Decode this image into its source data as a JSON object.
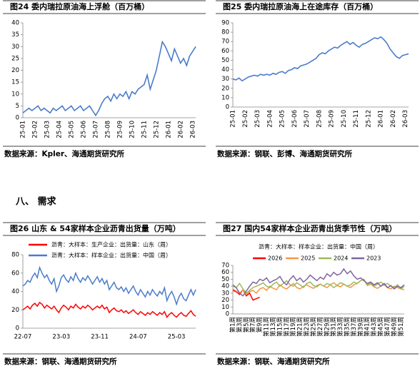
{
  "section_heading": "八、 需求",
  "chart_data": [
    {
      "type": "line",
      "title": "图24 委内瑞拉原油海上浮舱（百万桶）",
      "source": "数据来源：Kpler、海通期货研究所",
      "categories": [
        "25-01",
        null,
        null,
        null,
        "25-02",
        null,
        null,
        null,
        "25-03",
        null,
        null,
        null,
        "25-04",
        null,
        null,
        null,
        "25-05",
        null,
        null,
        null,
        "25-06",
        null,
        null,
        null,
        "25-07",
        null,
        null,
        null,
        "25-08",
        null,
        null,
        null,
        "25-09",
        null,
        null,
        null,
        "25-10",
        null,
        null,
        null,
        "25-11",
        null,
        null,
        null,
        "25-12",
        null,
        null,
        null,
        "26-01",
        null,
        null,
        null,
        "26-02",
        null,
        null,
        null,
        "26-03",
        null
      ],
      "series": [
        {
          "name": null,
          "color": "#4a7cc9",
          "values": [
            2,
            3,
            4,
            3,
            4,
            5,
            3,
            4,
            3,
            2,
            4,
            3,
            4,
            5,
            3,
            4,
            5,
            3,
            4,
            5,
            3,
            4,
            5,
            3,
            1,
            3,
            6,
            8,
            9,
            7,
            10,
            8,
            10,
            9,
            11,
            8,
            11,
            10,
            12,
            13,
            14,
            18,
            12,
            16,
            20,
            26,
            32,
            30,
            27,
            24,
            29,
            26,
            23,
            25,
            22,
            26,
            28,
            30
          ]
        }
      ],
      "ylim": [
        0,
        40
      ],
      "yticks": [
        0,
        5,
        10,
        15,
        20,
        25,
        30,
        35,
        40
      ]
    },
    {
      "type": "line",
      "title": "图25 委内瑞拉原油海上在途库存（百万桶）",
      "source": "数据来源：钢联、彭博、海通期货研究所",
      "categories": [
        "25-01",
        null,
        null,
        null,
        "25-02",
        null,
        null,
        null,
        "25-03",
        null,
        null,
        null,
        "25-04",
        null,
        null,
        null,
        "25-05",
        null,
        null,
        null,
        "25-06",
        null,
        null,
        null,
        "25-07",
        null,
        null,
        null,
        "25-08",
        null,
        null,
        null,
        "25-09",
        null,
        null,
        null,
        "25-10",
        null,
        null,
        null,
        "25-11",
        null,
        null,
        null,
        "25-12",
        null,
        null,
        null,
        "26-01",
        null,
        null,
        null,
        "26-02",
        null,
        null,
        null,
        "26-03",
        null
      ],
      "series": [
        {
          "name": null,
          "color": "#4a7cc9",
          "values": [
            30,
            29,
            31,
            28,
            30,
            32,
            33,
            34,
            33,
            35,
            34,
            35,
            34,
            36,
            35,
            37,
            38,
            36,
            39,
            40,
            42,
            41,
            44,
            45,
            46,
            48,
            50,
            52,
            56,
            58,
            57,
            60,
            62,
            64,
            63,
            66,
            68,
            70,
            67,
            69,
            66,
            64,
            67,
            68,
            70,
            72,
            74,
            73,
            75,
            72,
            68,
            62,
            58,
            54,
            52,
            55,
            56,
            57
          ]
        }
      ],
      "ylim": [
        0,
        90
      ],
      "yticks": [
        0,
        10,
        20,
        30,
        40,
        50,
        60,
        70,
        80,
        90
      ]
    },
    {
      "type": "line",
      "title": "图26 山东 & 54家样本企业沥青出货量（万吨）",
      "source": "数据来源：钢联、海通期货研究所",
      "categories": [
        "22-07",
        null,
        null,
        null,
        null,
        null,
        null,
        null,
        null,
        null,
        null,
        null,
        null,
        null,
        null,
        null,
        "23-03",
        null,
        null,
        null,
        null,
        null,
        null,
        null,
        null,
        null,
        null,
        null,
        null,
        null,
        null,
        null,
        "23-11",
        null,
        null,
        null,
        null,
        null,
        null,
        null,
        null,
        null,
        null,
        null,
        null,
        null,
        null,
        null,
        "24-07",
        null,
        null,
        null,
        null,
        null,
        null,
        null,
        null,
        null,
        null,
        null,
        null,
        null,
        null,
        null,
        "25-03",
        null,
        null,
        null,
        null,
        null,
        null,
        null,
        null
      ],
      "series": [
        {
          "name": "沥青：大样本：生产企业：出货量：山东（周）",
          "color": "#ff0000",
          "values": [
            20,
            22,
            24,
            21,
            25,
            27,
            24,
            28,
            26,
            22,
            25,
            23,
            21,
            24,
            20,
            17,
            22,
            25,
            23,
            20,
            24,
            22,
            26,
            23,
            21,
            24,
            22,
            25,
            23,
            20,
            22,
            24,
            22,
            25,
            21,
            23,
            17,
            20,
            22,
            19,
            18,
            20,
            17,
            19,
            16,
            18,
            20,
            17,
            15,
            18,
            16,
            14,
            17,
            15,
            18,
            16,
            14,
            17,
            15,
            18,
            12,
            15,
            17,
            14,
            12,
            15,
            17,
            14,
            13,
            16,
            19,
            15,
            13
          ]
        },
        {
          "name": "沥青：大样本：样本企业：出货量：中国（周）",
          "color": "#4a7cc9",
          "values": [
            46,
            48,
            52,
            50,
            56,
            60,
            55,
            66,
            60,
            55,
            58,
            52,
            48,
            54,
            40,
            46,
            55,
            58,
            53,
            50,
            56,
            52,
            60,
            54,
            50,
            55,
            52,
            57,
            53,
            48,
            52,
            56,
            50,
            54,
            48,
            52,
            42,
            46,
            50,
            44,
            42,
            45,
            40,
            44,
            38,
            42,
            46,
            40,
            36,
            42,
            38,
            34,
            40,
            36,
            42,
            38,
            35,
            40,
            37,
            44,
            30,
            36,
            40,
            34,
            26,
            34,
            38,
            32,
            30,
            36,
            42,
            36,
            42
          ]
        }
      ],
      "ylim": [
        0,
        80
      ],
      "yticks": [
        0,
        20,
        40,
        60,
        80
      ]
    },
    {
      "type": "line",
      "title": "图27 国内54家样本企业沥青出货季节性（万吨）",
      "subtitle": "沥青：大样本：样本企业：出货量：中国（周）",
      "source": "数据来源：钢联、海通期货研究所",
      "categories": [
        "第1周",
        null,
        "第3周",
        null,
        "第5周",
        null,
        "第7周",
        null,
        "第9周",
        null,
        "第11周",
        null,
        "第13周",
        null,
        "第15周",
        null,
        "第17周",
        null,
        "第19周",
        null,
        "第21周",
        null,
        "第23周",
        null,
        "第25周",
        null,
        "第27周",
        null,
        "第29周",
        null,
        "第31周",
        null,
        "第33周",
        null,
        "第35周",
        null,
        "第37周",
        null,
        "第39周",
        null,
        "第41周",
        null,
        "第43周",
        null,
        "第45周",
        null,
        "第47周",
        null,
        "第49周",
        null,
        "第51周",
        null
      ],
      "series": [
        {
          "name": "2026",
          "color": "#ff0000",
          "values": [
            34,
            32,
            28,
            35,
            26,
            30,
            20,
            22,
            24,
            null,
            null,
            null,
            null,
            null,
            null,
            null,
            null,
            null,
            null,
            null,
            null,
            null,
            null,
            null,
            null,
            null,
            null,
            null,
            null,
            null,
            null,
            null,
            null,
            null,
            null,
            null,
            null,
            null,
            null,
            null,
            null,
            null,
            null,
            null,
            null,
            null,
            null,
            null,
            null,
            null,
            null,
            null
          ]
        },
        {
          "name": "2025",
          "color": "#f79646",
          "values": [
            36,
            33,
            30,
            35,
            28,
            32,
            34,
            30,
            36,
            38,
            34,
            40,
            37,
            35,
            42,
            38,
            36,
            40,
            44,
            38,
            36,
            40,
            42,
            39,
            37,
            41,
            43,
            40,
            38,
            42,
            45,
            41,
            39,
            43,
            40,
            38,
            42,
            44,
            48,
            50,
            41,
            43,
            39,
            37,
            40,
            42,
            38,
            36,
            40,
            38,
            36,
            35
          ]
        },
        {
          "name": "2024",
          "color": "#9bbb59",
          "values": [
            40,
            38,
            44,
            36,
            30,
            34,
            38,
            40,
            42,
            45,
            40,
            38,
            43,
            46,
            40,
            44,
            48,
            42,
            40,
            45,
            42,
            38,
            44,
            46,
            41,
            39,
            43,
            40,
            44,
            42,
            38,
            41,
            45,
            43,
            40,
            42,
            46,
            44,
            48,
            50,
            42,
            45,
            40,
            43,
            46,
            42,
            44,
            40,
            38,
            42,
            36,
            40
          ]
        },
        {
          "name": "2023",
          "color": "#8064a2",
          "values": [
            42,
            38,
            30,
            26,
            33,
            40,
            46,
            44,
            50,
            48,
            52,
            45,
            48,
            50,
            54,
            46,
            42,
            50,
            55,
            48,
            52,
            46,
            50,
            56,
            52,
            48,
            53,
            50,
            58,
            54,
            60,
            56,
            58,
            65,
            58,
            62,
            55,
            50,
            52,
            48,
            44,
            46,
            42,
            45,
            40,
            44,
            38,
            41,
            36,
            40,
            38,
            42
          ]
        }
      ],
      "ylim": [
        0,
        70
      ],
      "yticks": [
        0,
        10,
        20,
        30,
        40,
        50,
        60,
        70
      ]
    }
  ]
}
